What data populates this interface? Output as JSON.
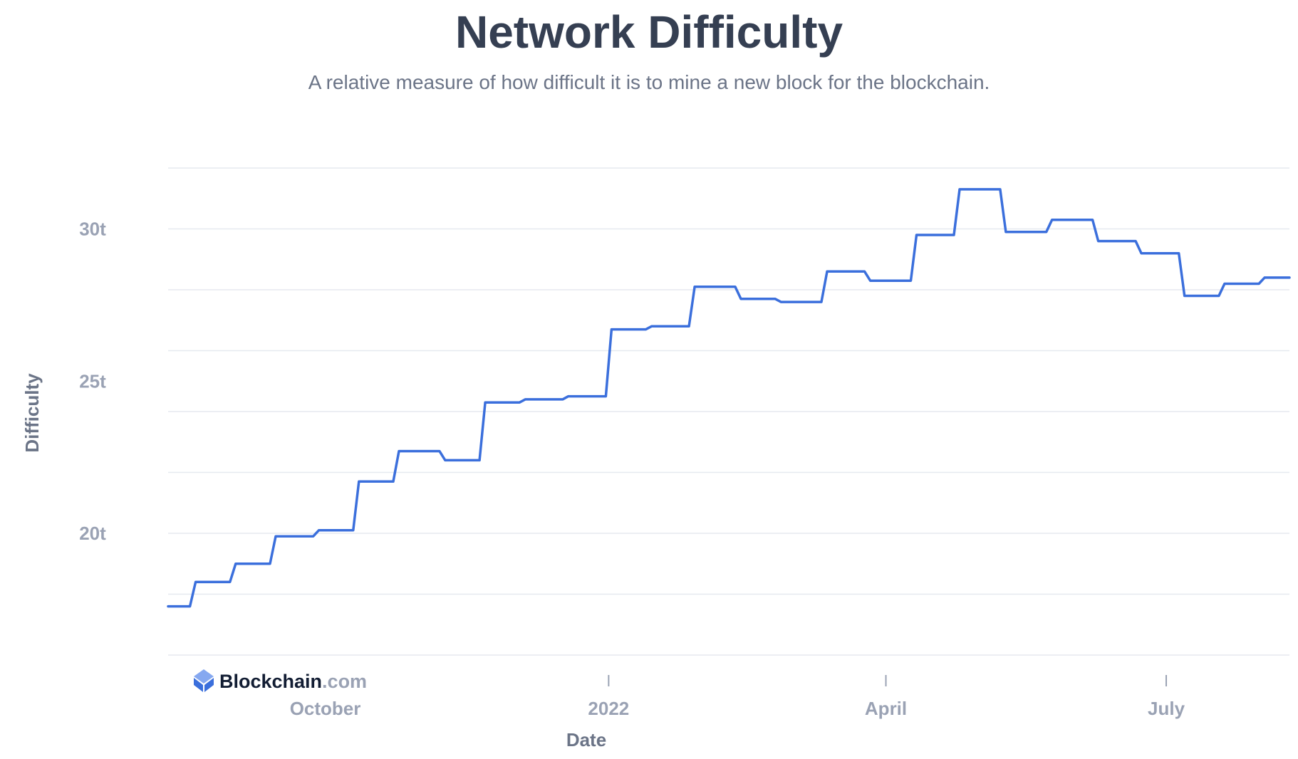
{
  "header": {
    "title": "Network Difficulty",
    "subtitle": "A relative measure of how difficult it is to mine a new block for the blockchain."
  },
  "brand": {
    "name": "Blockchain",
    "domain": ".com"
  },
  "colors": {
    "line": "#3b6fdc",
    "grid": "#e6e9ef",
    "logo_dark": "#3b6fdc",
    "logo_light": "#86a8f0"
  },
  "chart_data": {
    "type": "line",
    "xlabel": "Date",
    "ylabel": "Difficulty",
    "x_range": [
      "2021-08-11",
      "2022-08-10"
    ],
    "ylim": [
      16,
      32
    ],
    "y_ticks": [
      {
        "value": 20,
        "label": "20t"
      },
      {
        "value": 25,
        "label": "25t"
      },
      {
        "value": 30,
        "label": "30t"
      }
    ],
    "y_grid": [
      17,
      18,
      19,
      20,
      21,
      22,
      23,
      24,
      25,
      26,
      27,
      28,
      29,
      30,
      31,
      32
    ],
    "grid_lines": [
      16,
      18,
      20,
      22,
      24,
      26,
      28,
      30,
      32
    ],
    "x_ticks": [
      {
        "date": "2021-10-01",
        "label": "October",
        "mark": false
      },
      {
        "date": "2022-01-01",
        "label": "2022",
        "mark": true
      },
      {
        "date": "2022-04-01",
        "label": "April",
        "mark": true
      },
      {
        "date": "2022-07-01",
        "label": "July",
        "mark": true
      }
    ],
    "series": [
      {
        "name": "",
        "points": [
          [
            "2021-08-11",
            17.6
          ],
          [
            "2021-08-19",
            18.4
          ],
          [
            "2021-09-01",
            19.0
          ],
          [
            "2021-09-14",
            19.9
          ],
          [
            "2021-09-28",
            20.1
          ],
          [
            "2021-10-11",
            21.7
          ],
          [
            "2021-10-24",
            22.7
          ],
          [
            "2021-11-08",
            22.4
          ],
          [
            "2021-11-21",
            24.3
          ],
          [
            "2021-12-04",
            24.4
          ],
          [
            "2021-12-18",
            24.5
          ],
          [
            "2022-01-01",
            26.7
          ],
          [
            "2022-01-14",
            26.8
          ],
          [
            "2022-01-28",
            28.1
          ],
          [
            "2022-02-12",
            27.7
          ],
          [
            "2022-02-25",
            27.6
          ],
          [
            "2022-03-12",
            28.6
          ],
          [
            "2022-03-26",
            28.3
          ],
          [
            "2022-04-10",
            29.8
          ],
          [
            "2022-04-24",
            31.3
          ],
          [
            "2022-05-09",
            29.9
          ],
          [
            "2022-05-24",
            30.3
          ],
          [
            "2022-06-08",
            29.6
          ],
          [
            "2022-06-22",
            29.2
          ],
          [
            "2022-07-06",
            27.8
          ],
          [
            "2022-07-19",
            28.2
          ],
          [
            "2022-08-01",
            28.4
          ]
        ]
      }
    ]
  }
}
